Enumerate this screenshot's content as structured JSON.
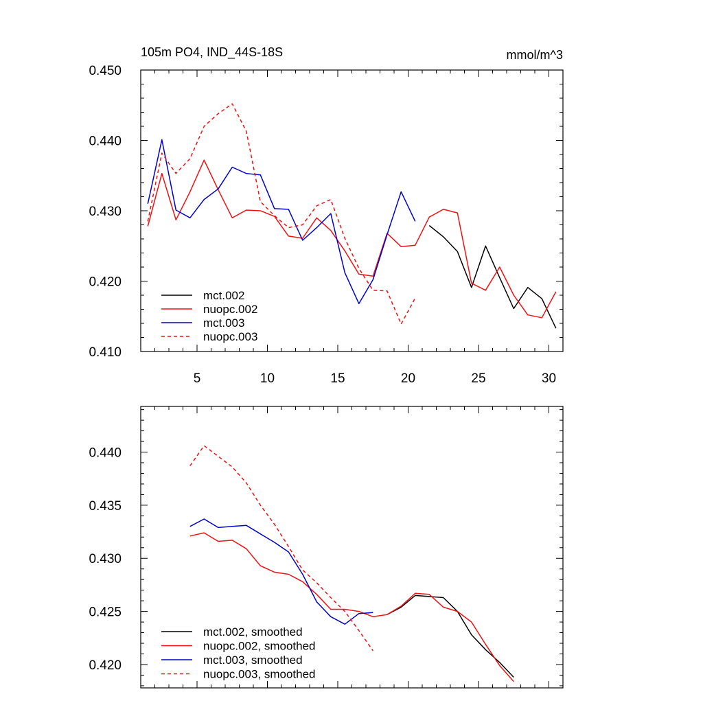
{
  "colors": {
    "black": "#000000",
    "red": "#ee1111",
    "blue": "#0000cc"
  },
  "chart_data": [
    {
      "type": "line",
      "title": "105m PO4, IND_44S-18S",
      "units": "mmol/m^3",
      "xlim": [
        1,
        31
      ],
      "ylim": [
        0.41,
        0.45
      ],
      "xticks": [
        5,
        10,
        15,
        20,
        25,
        30
      ],
      "xtick_labels": [
        "5",
        "10",
        "15",
        "20",
        "25",
        "30"
      ],
      "yticks": [
        0.41,
        0.42,
        0.43,
        0.44,
        0.45
      ],
      "ytick_labels": [
        "0.410",
        "0.420",
        "0.430",
        "0.440",
        "0.450"
      ],
      "legend_position": "bottom-left",
      "series": [
        {
          "name": "mct.002",
          "color": "#000000",
          "dash": false,
          "x": [
            21.5,
            22.5,
            23.5,
            24.5,
            25.5,
            26.5,
            27.5,
            28.5,
            29.5,
            30.5
          ],
          "y": [
            0.4279,
            0.4263,
            0.4242,
            0.4191,
            0.425,
            0.4205,
            0.4161,
            0.4191,
            0.4175,
            0.4133
          ]
        },
        {
          "name": "nuopc.002",
          "color": "#ee1111",
          "dash": false,
          "x": [
            1.5,
            2.5,
            3.5,
            4.5,
            5.5,
            6.5,
            7.5,
            8.5,
            9.5,
            10.5,
            11.5,
            12.5,
            13.5,
            14.5,
            15.5,
            16.5,
            17.5,
            18.5,
            19.5,
            20.5,
            21.5,
            22.5,
            23.5,
            24.5,
            25.5,
            26.5,
            27.5,
            28.5,
            29.5,
            30.5
          ],
          "y": [
            0.4278,
            0.4353,
            0.4287,
            0.4327,
            0.4372,
            0.433,
            0.429,
            0.4301,
            0.43,
            0.4292,
            0.4264,
            0.4261,
            0.429,
            0.4272,
            0.4243,
            0.421,
            0.4207,
            0.4268,
            0.4249,
            0.4251,
            0.4291,
            0.4302,
            0.4297,
            0.4197,
            0.4187,
            0.422,
            0.418,
            0.4152,
            0.4148,
            0.4185
          ]
        },
        {
          "name": "mct.003",
          "color": "#0000cc",
          "dash": false,
          "x": [
            1.5,
            2.5,
            3.5,
            4.5,
            5.5,
            6.5,
            7.5,
            8.5,
            9.5,
            10.5,
            11.5,
            12.5,
            13.5,
            14.5,
            15.5,
            16.5,
            17.5,
            18.5,
            19.5,
            20.5
          ],
          "y": [
            0.431,
            0.4401,
            0.4301,
            0.429,
            0.4316,
            0.4331,
            0.4362,
            0.4353,
            0.4351,
            0.4303,
            0.4302,
            0.4258,
            0.4276,
            0.4296,
            0.4212,
            0.4168,
            0.4202,
            0.4266,
            0.4327,
            0.4285
          ]
        },
        {
          "name": "nuopc.003",
          "color": "#ee1111",
          "dash": true,
          "x": [
            1.5,
            2.5,
            3.5,
            4.5,
            5.5,
            6.5,
            7.5,
            8.5,
            9.5,
            10.5,
            11.5,
            12.5,
            13.5,
            14.5,
            15.5,
            16.5,
            17.5,
            18.5,
            19.5,
            20.5
          ],
          "y": [
            0.4285,
            0.4382,
            0.4353,
            0.4374,
            0.442,
            0.4438,
            0.4452,
            0.4413,
            0.4313,
            0.4293,
            0.4276,
            0.428,
            0.4307,
            0.4316,
            0.4261,
            0.4218,
            0.4187,
            0.4186,
            0.4139,
            0.4176
          ]
        }
      ]
    },
    {
      "type": "line",
      "xlim": [
        1,
        31
      ],
      "ylim": [
        0.4178,
        0.4443
      ],
      "xticks": [
        5,
        10,
        15,
        20,
        25,
        30
      ],
      "yticks": [
        0.42,
        0.425,
        0.43,
        0.435,
        0.44
      ],
      "ytick_labels": [
        "0.420",
        "0.425",
        "0.430",
        "0.435",
        "0.440"
      ],
      "legend_position": "bottom-left",
      "series": [
        {
          "name": "mct.002, smoothed",
          "color": "#000000",
          "dash": false,
          "x": [
            18.5,
            19.5,
            20.5,
            21.5,
            22.5,
            23.5,
            24.5,
            25.5,
            26.5,
            27.5
          ],
          "y": [
            0.4247,
            0.4254,
            0.4265,
            0.4264,
            0.4263,
            0.425,
            0.4228,
            0.4214,
            0.4202,
            0.4188
          ]
        },
        {
          "name": "nuopc.002, smoothed",
          "color": "#ee1111",
          "dash": false,
          "x": [
            4.5,
            5.5,
            6.5,
            7.5,
            8.5,
            9.5,
            10.5,
            11.5,
            12.5,
            13.5,
            14.5,
            15.5,
            16.5,
            17.5,
            18.5,
            19.5,
            20.5,
            21.5,
            22.5,
            23.5,
            24.5,
            25.5,
            26.5,
            27.5
          ],
          "y": [
            0.4321,
            0.4324,
            0.4316,
            0.4317,
            0.4309,
            0.4293,
            0.4287,
            0.4285,
            0.4278,
            0.4266,
            0.4252,
            0.4252,
            0.425,
            0.4245,
            0.4247,
            0.4255,
            0.4267,
            0.4266,
            0.4254,
            0.425,
            0.424,
            0.4219,
            0.4199,
            0.4184
          ]
        },
        {
          "name": "mct.003, smoothed",
          "color": "#0000cc",
          "dash": false,
          "x": [
            4.5,
            5.5,
            6.5,
            7.5,
            8.5,
            9.5,
            10.5,
            11.5,
            12.5,
            13.5,
            14.5,
            15.5,
            16.5,
            17.5
          ],
          "y": [
            0.433,
            0.4337,
            0.4329,
            0.433,
            0.4331,
            0.4323,
            0.4315,
            0.4306,
            0.4285,
            0.4259,
            0.4245,
            0.4238,
            0.4248,
            0.4249
          ]
        },
        {
          "name": "nuopc.003, smoothed",
          "color": "#ee1111",
          "dash": true,
          "x": [
            4.5,
            5.5,
            6.5,
            7.5,
            8.5,
            9.5,
            10.5,
            11.5,
            12.5,
            13.5,
            14.5,
            15.5,
            16.5,
            17.5
          ],
          "y": [
            0.4387,
            0.4406,
            0.4396,
            0.4386,
            0.4371,
            0.435,
            0.4332,
            0.4311,
            0.4289,
            0.4277,
            0.4263,
            0.425,
            0.4232,
            0.4213
          ]
        }
      ]
    }
  ]
}
